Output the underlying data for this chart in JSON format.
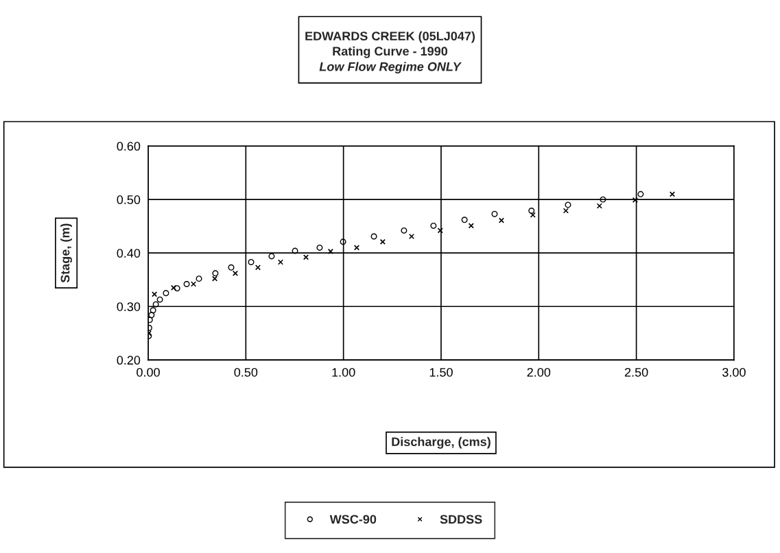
{
  "chart_data": {
    "type": "scatter",
    "title": "EDWARDS CREEK (05LJ047)\nRating Curve - 1990",
    "subtitle": "Low Flow Regime ONLY",
    "xlabel": "Discharge, (cms)",
    "ylabel": "Stage, (m)",
    "xlim": [
      0,
      3
    ],
    "xticks": [
      {
        "value": 0,
        "label": "0.00"
      },
      {
        "value": 0.5,
        "label": "0.50"
      },
      {
        "value": 1,
        "label": "1.00"
      },
      {
        "value": 1.5,
        "label": "1.50"
      },
      {
        "value": 2,
        "label": "2.00"
      },
      {
        "value": 2.5,
        "label": "2.50"
      },
      {
        "value": 3,
        "label": "3.00"
      }
    ],
    "ylim": [
      0.2,
      0.6
    ],
    "yticks": [
      {
        "value": 0.2,
        "label": "0.20"
      },
      {
        "value": 0.3,
        "label": "0.30"
      },
      {
        "value": 0.4,
        "label": "0.40"
      },
      {
        "value": 0.5,
        "label": "0.50"
      },
      {
        "value": 0.6,
        "label": "0.60"
      }
    ],
    "grid": true,
    "legend": "bottom",
    "series": [
      {
        "name": "WSC-90",
        "color": "#000000",
        "marker": "circle",
        "x": [
          0.003,
          0.005,
          0.008,
          0.017,
          0.025,
          0.039,
          0.06,
          0.091,
          0.148,
          0.197,
          0.26,
          0.344,
          0.425,
          0.527,
          0.632,
          0.752,
          0.878,
          0.998,
          1.156,
          1.31,
          1.461,
          1.62,
          1.774,
          1.963,
          2.15,
          2.329,
          2.522
        ],
        "values": [
          0.245,
          0.26,
          0.275,
          0.284,
          0.293,
          0.304,
          0.313,
          0.325,
          0.334,
          0.342,
          0.352,
          0.362,
          0.373,
          0.383,
          0.394,
          0.404,
          0.41,
          0.421,
          0.431,
          0.442,
          0.451,
          0.462,
          0.473,
          0.479,
          0.49,
          0.5,
          0.51
        ]
      },
      {
        "name": "SDDSS",
        "color": "#000000",
        "marker": "cross",
        "x": [
          0.003,
          0.032,
          0.13,
          0.232,
          0.341,
          0.446,
          0.562,
          0.678,
          0.808,
          0.934,
          1.068,
          1.201,
          1.349,
          1.496,
          1.654,
          1.809,
          1.97,
          2.139,
          2.311,
          2.494,
          2.684
        ],
        "values": [
          0.25,
          0.323,
          0.335,
          0.342,
          0.352,
          0.362,
          0.373,
          0.383,
          0.392,
          0.403,
          0.41,
          0.421,
          0.431,
          0.442,
          0.451,
          0.461,
          0.471,
          0.479,
          0.488,
          0.499,
          0.51
        ]
      }
    ]
  }
}
